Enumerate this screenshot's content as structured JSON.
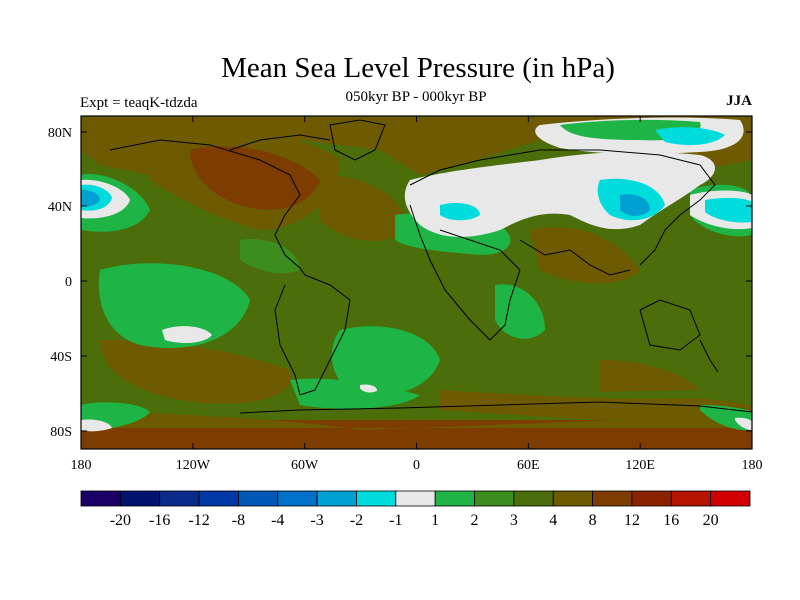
{
  "title": "Mean Sea Level Pressure (in hPa)",
  "subtitle": "050kyr BP - 000kyr BP",
  "experiment": "Expt = teaqK-tdzda",
  "season": "JJA",
  "axes": {
    "lon_ticks": [
      "180",
      "120W",
      "60W",
      "0",
      "60E",
      "120E",
      "180"
    ],
    "lat_ticks": [
      "80N",
      "40N",
      "0",
      "40S",
      "80S"
    ]
  },
  "colorbar": {
    "colors": [
      "#1a0066",
      "#00116e",
      "#0a2a8c",
      "#0039a6",
      "#0058b4",
      "#0070c8",
      "#00a0d2",
      "#00dcdc",
      "#e8e8e8",
      "#1fb446",
      "#3c8c1e",
      "#4b6e0a",
      "#6e5a00",
      "#7d3c00",
      "#8c2300",
      "#b41400",
      "#d20000"
    ],
    "labels": [
      "-20",
      "-16",
      "-12",
      "-8",
      "-4",
      "-3",
      "-2",
      "-1",
      "1",
      "2",
      "3",
      "4",
      "8",
      "12",
      "16",
      "20"
    ]
  }
}
